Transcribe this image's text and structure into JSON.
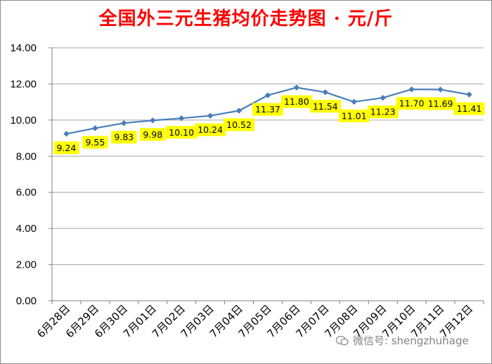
{
  "chart_data": {
    "type": "line",
    "title": "全国外三元生猪均价走势图 · 元/斤",
    "categories": [
      "6月28日",
      "6月29日",
      "6月30日",
      "7月01日",
      "7月02日",
      "7月03日",
      "7月04日",
      "7月05日",
      "7月06日",
      "7月07日",
      "7月08日",
      "7月09日",
      "7月10日",
      "7月11日",
      "7月12日"
    ],
    "values": [
      9.24,
      9.55,
      9.83,
      9.98,
      10.1,
      10.24,
      10.52,
      11.37,
      11.8,
      11.54,
      11.01,
      11.23,
      11.7,
      11.69,
      11.41
    ],
    "data_labels": [
      "9.24",
      "9.55",
      "9.83",
      "9.98",
      "10.10",
      "10.24",
      "10.52",
      "11.37",
      "11.80",
      "11.54",
      "11.01",
      "11.23",
      "11.70",
      "11.69",
      "11.41"
    ],
    "ylim": [
      0,
      14
    ],
    "yticks": [
      "0.00",
      "2.00",
      "4.00",
      "6.00",
      "8.00",
      "10.00",
      "12.00",
      "14.00"
    ],
    "grid": true,
    "legend": "none",
    "colors": {
      "line": "#4a7ebb",
      "marker": "#4a7ebb",
      "label_bg": "#ffff00",
      "title": "#ff0000",
      "grid": "#a6a6a6"
    }
  },
  "watermark": "微信号: shengzhuhage"
}
